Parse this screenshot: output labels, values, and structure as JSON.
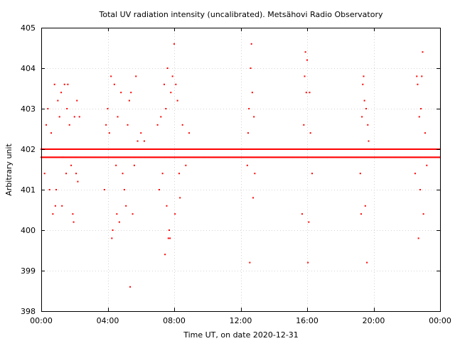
{
  "chart_data": {
    "type": "scatter",
    "title": "Total UV radiation intensity (uncalibrated). Metsähovi Radio Observatory",
    "xlabel": "Time UT, on date 2020-12-31",
    "ylabel": "Arbitrary unit",
    "x_unit": "hours UT",
    "xlim": [
      0,
      24
    ],
    "ylim": [
      398,
      405
    ],
    "grid": true,
    "legend": "none",
    "marker_color": "#ff0000",
    "xticks": [
      {
        "value": 0,
        "label": "00:00"
      },
      {
        "value": 4,
        "label": "04:00"
      },
      {
        "value": 8,
        "label": "08:00"
      },
      {
        "value": 12,
        "label": "12:00"
      },
      {
        "value": 16,
        "label": "16:00"
      },
      {
        "value": 20,
        "label": "20:00"
      },
      {
        "value": 24,
        "label": "00:00"
      }
    ],
    "yticks": [
      {
        "value": 398,
        "label": "398"
      },
      {
        "value": 399,
        "label": "399"
      },
      {
        "value": 400,
        "label": "400"
      },
      {
        "value": 401,
        "label": "401"
      },
      {
        "value": 402,
        "label": "402"
      },
      {
        "value": 403,
        "label": "403"
      },
      {
        "value": 404,
        "label": "404"
      },
      {
        "value": 405,
        "label": "405"
      }
    ],
    "baseline_values": [
      402.0,
      401.8
    ],
    "baseline_step_hours": 0.05,
    "points": [
      {
        "x": 0.2,
        "y": 401.4
      },
      {
        "x": 0.3,
        "y": 402.6
      },
      {
        "x": 0.4,
        "y": 403.0
      },
      {
        "x": 0.5,
        "y": 401.0
      },
      {
        "x": 0.6,
        "y": 402.4
      },
      {
        "x": 0.7,
        "y": 400.4
      },
      {
        "x": 0.8,
        "y": 403.6
      },
      {
        "x": 0.85,
        "y": 400.6
      },
      {
        "x": 0.9,
        "y": 401.0
      },
      {
        "x": 1.0,
        "y": 403.2
      },
      {
        "x": 1.1,
        "y": 402.8
      },
      {
        "x": 1.2,
        "y": 403.4
      },
      {
        "x": 1.25,
        "y": 400.6
      },
      {
        "x": 1.3,
        "y": 401.8
      },
      {
        "x": 1.4,
        "y": 403.6
      },
      {
        "x": 1.5,
        "y": 401.4
      },
      {
        "x": 1.55,
        "y": 403.0
      },
      {
        "x": 1.6,
        "y": 403.6
      },
      {
        "x": 1.7,
        "y": 402.6
      },
      {
        "x": 1.8,
        "y": 401.6
      },
      {
        "x": 1.9,
        "y": 400.4
      },
      {
        "x": 1.95,
        "y": 400.2
      },
      {
        "x": 2.0,
        "y": 402.8
      },
      {
        "x": 2.1,
        "y": 401.4
      },
      {
        "x": 2.15,
        "y": 403.2
      },
      {
        "x": 2.2,
        "y": 401.2
      },
      {
        "x": 2.3,
        "y": 402.8
      },
      {
        "x": 3.8,
        "y": 401.0
      },
      {
        "x": 3.9,
        "y": 402.6
      },
      {
        "x": 4.0,
        "y": 403.0
      },
      {
        "x": 4.1,
        "y": 402.4
      },
      {
        "x": 4.2,
        "y": 403.8
      },
      {
        "x": 4.25,
        "y": 399.8
      },
      {
        "x": 4.3,
        "y": 400.0
      },
      {
        "x": 4.4,
        "y": 403.6
      },
      {
        "x": 4.5,
        "y": 401.6
      },
      {
        "x": 4.55,
        "y": 400.4
      },
      {
        "x": 4.6,
        "y": 402.8
      },
      {
        "x": 4.7,
        "y": 400.2
      },
      {
        "x": 4.8,
        "y": 403.4
      },
      {
        "x": 4.9,
        "y": 401.4
      },
      {
        "x": 5.0,
        "y": 401.0
      },
      {
        "x": 5.1,
        "y": 400.6
      },
      {
        "x": 5.2,
        "y": 402.6
      },
      {
        "x": 5.3,
        "y": 403.2
      },
      {
        "x": 5.35,
        "y": 398.6
      },
      {
        "x": 5.4,
        "y": 403.4
      },
      {
        "x": 5.5,
        "y": 400.4
      },
      {
        "x": 5.6,
        "y": 401.6
      },
      {
        "x": 5.7,
        "y": 403.8
      },
      {
        "x": 5.8,
        "y": 402.2
      },
      {
        "x": 6.0,
        "y": 402.4
      },
      {
        "x": 6.2,
        "y": 402.2
      },
      {
        "x": 7.0,
        "y": 402.6
      },
      {
        "x": 7.1,
        "y": 401.0
      },
      {
        "x": 7.2,
        "y": 402.8
      },
      {
        "x": 7.3,
        "y": 401.4
      },
      {
        "x": 7.4,
        "y": 403.6
      },
      {
        "x": 7.45,
        "y": 399.4
      },
      {
        "x": 7.5,
        "y": 403.0
      },
      {
        "x": 7.55,
        "y": 400.6
      },
      {
        "x": 7.6,
        "y": 404.0
      },
      {
        "x": 7.65,
        "y": 399.8
      },
      {
        "x": 7.7,
        "y": 400.0
      },
      {
        "x": 7.75,
        "y": 399.8
      },
      {
        "x": 7.8,
        "y": 403.4
      },
      {
        "x": 7.9,
        "y": 403.8
      },
      {
        "x": 8.0,
        "y": 404.6
      },
      {
        "x": 8.05,
        "y": 400.4
      },
      {
        "x": 8.1,
        "y": 403.6
      },
      {
        "x": 8.2,
        "y": 403.2
      },
      {
        "x": 8.3,
        "y": 401.4
      },
      {
        "x": 8.35,
        "y": 400.8
      },
      {
        "x": 8.5,
        "y": 402.6
      },
      {
        "x": 8.7,
        "y": 401.6
      },
      {
        "x": 8.9,
        "y": 402.4
      },
      {
        "x": 12.4,
        "y": 401.6
      },
      {
        "x": 12.45,
        "y": 402.4
      },
      {
        "x": 12.5,
        "y": 403.0
      },
      {
        "x": 12.55,
        "y": 399.2
      },
      {
        "x": 12.6,
        "y": 404.0
      },
      {
        "x": 12.65,
        "y": 404.6
      },
      {
        "x": 12.7,
        "y": 403.4
      },
      {
        "x": 12.75,
        "y": 400.8
      },
      {
        "x": 12.8,
        "y": 402.8
      },
      {
        "x": 12.85,
        "y": 401.4
      },
      {
        "x": 15.7,
        "y": 400.4
      },
      {
        "x": 15.8,
        "y": 402.6
      },
      {
        "x": 15.85,
        "y": 403.8
      },
      {
        "x": 15.9,
        "y": 404.4
      },
      {
        "x": 15.95,
        "y": 403.4
      },
      {
        "x": 16.0,
        "y": 404.2
      },
      {
        "x": 16.05,
        "y": 399.2
      },
      {
        "x": 16.1,
        "y": 400.2
      },
      {
        "x": 16.15,
        "y": 403.4
      },
      {
        "x": 16.2,
        "y": 402.4
      },
      {
        "x": 16.3,
        "y": 401.4
      },
      {
        "x": 19.2,
        "y": 401.4
      },
      {
        "x": 19.25,
        "y": 400.4
      },
      {
        "x": 19.3,
        "y": 402.8
      },
      {
        "x": 19.35,
        "y": 403.6
      },
      {
        "x": 19.4,
        "y": 403.8
      },
      {
        "x": 19.45,
        "y": 403.2
      },
      {
        "x": 19.5,
        "y": 400.6
      },
      {
        "x": 19.55,
        "y": 403.0
      },
      {
        "x": 19.6,
        "y": 399.2
      },
      {
        "x": 19.65,
        "y": 402.6
      },
      {
        "x": 19.7,
        "y": 402.2
      },
      {
        "x": 22.5,
        "y": 401.4
      },
      {
        "x": 22.6,
        "y": 403.8
      },
      {
        "x": 22.65,
        "y": 403.6
      },
      {
        "x": 22.7,
        "y": 399.8
      },
      {
        "x": 22.75,
        "y": 402.8
      },
      {
        "x": 22.8,
        "y": 401.0
      },
      {
        "x": 22.85,
        "y": 403.0
      },
      {
        "x": 22.9,
        "y": 403.8
      },
      {
        "x": 22.95,
        "y": 404.4
      },
      {
        "x": 23.0,
        "y": 400.4
      },
      {
        "x": 23.1,
        "y": 402.4
      },
      {
        "x": 23.2,
        "y": 401.6
      },
      {
        "x": 23.4,
        "y": 402.0
      }
    ]
  }
}
